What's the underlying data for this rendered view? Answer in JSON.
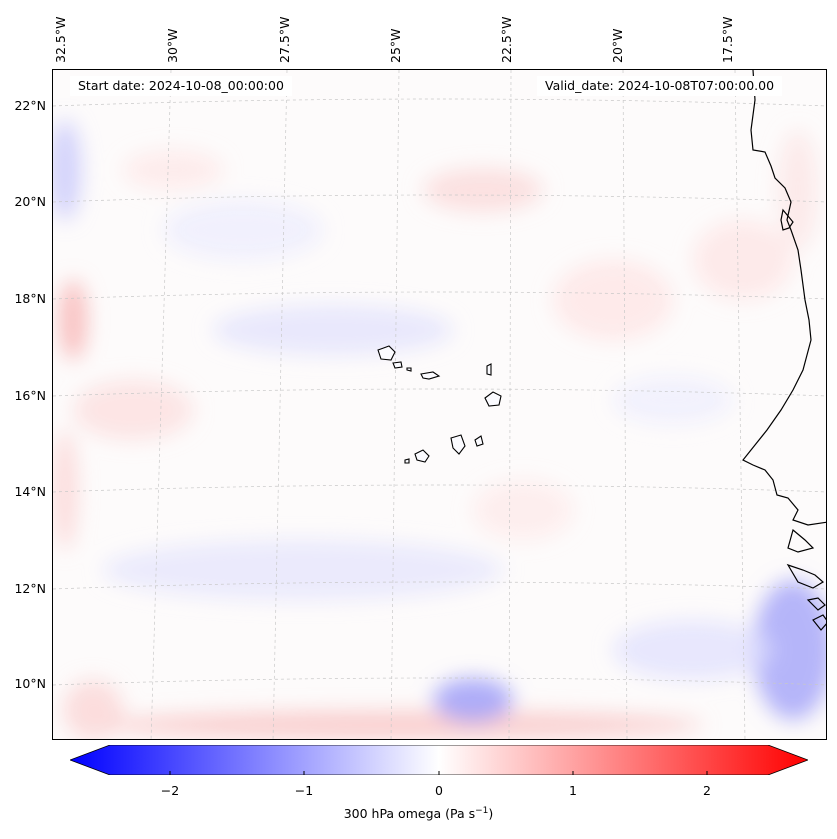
{
  "map": {
    "start_date": "Start date: 2024-10-08_00:00:00",
    "valid_date": "Valid_date: 2024-10-08T07:00:00.00",
    "lon_labels": [
      "32.5°W",
      "30°W",
      "27.5°W",
      "25°W",
      "22.5°W",
      "20°W",
      "17.5°W"
    ],
    "lat_labels": [
      "22°N",
      "20°N",
      "18°N",
      "16°N",
      "14°N",
      "12°N",
      "10°N"
    ],
    "region": "Cape Verde / West African coast",
    "field": "300 hPa omega"
  },
  "colorbar": {
    "ticks": [
      "−2",
      "−1",
      "0",
      "1",
      "2"
    ],
    "label_main": "300 hPa omega (Pa s",
    "label_sup": "−1",
    "label_end": ")",
    "min_color": "#0000ff",
    "mid_color": "#ffffff",
    "max_color": "#ff0000"
  }
}
